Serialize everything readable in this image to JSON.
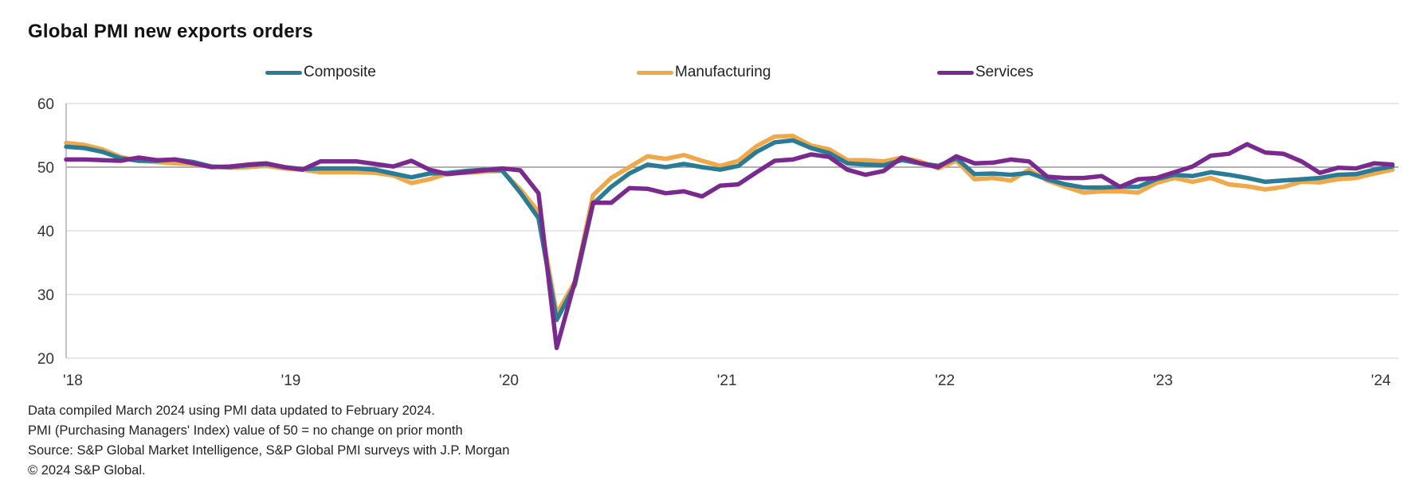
{
  "chart_data": {
    "type": "line",
    "title": "Global PMI new exports orders",
    "xlabel": "",
    "ylabel": "",
    "ylim": [
      20,
      60
    ],
    "yticks": [
      20,
      30,
      40,
      50,
      60
    ],
    "reference_line": 50,
    "grid": true,
    "legend_position": "top",
    "x_start": "2018-01",
    "x_end": "2024-02",
    "x_tick_labels": [
      "'18",
      "'19",
      "'20",
      "'21",
      "'22",
      "'23",
      "'24"
    ],
    "series": [
      {
        "name": "Composite",
        "color": "#2a7b96",
        "values": [
          53.2,
          53.0,
          52.4,
          51.4,
          51.0,
          51.0,
          51.2,
          50.8,
          50.1,
          50.0,
          50.3,
          50.5,
          50.0,
          49.7,
          49.8,
          49.8,
          49.8,
          49.6,
          49.0,
          48.4,
          49.0,
          49.1,
          49.4,
          49.6,
          49.5,
          46.0,
          42.0,
          26.0,
          31.5,
          44.2,
          46.9,
          49.0,
          50.4,
          50.0,
          50.5,
          50.0,
          49.6,
          50.2,
          52.4,
          53.9,
          54.2,
          53.0,
          52.2,
          50.6,
          50.4,
          50.3,
          51.1,
          50.6,
          50.2,
          51.4,
          48.9,
          49.0,
          48.8,
          49.1,
          48.1,
          47.3,
          46.8,
          46.8,
          46.9,
          46.9,
          48.1,
          48.8,
          48.6,
          49.2,
          48.8,
          48.3,
          47.7,
          47.9,
          48.1,
          48.3,
          48.8,
          48.9,
          49.6,
          50.1
        ]
      },
      {
        "name": "Manufacturing",
        "color": "#f0a848",
        "values": [
          53.8,
          53.5,
          52.8,
          51.6,
          51.0,
          50.8,
          50.6,
          50.5,
          50.1,
          49.9,
          50.0,
          50.2,
          49.8,
          49.6,
          49.2,
          49.2,
          49.2,
          49.1,
          48.7,
          47.5,
          48.1,
          49.0,
          49.1,
          49.3,
          49.4,
          46.5,
          43.0,
          27.0,
          32.0,
          45.6,
          48.3,
          50.0,
          51.7,
          51.3,
          51.9,
          51.0,
          50.2,
          51.0,
          53.3,
          54.8,
          54.9,
          53.4,
          52.8,
          51.1,
          51.1,
          50.9,
          51.5,
          50.9,
          49.8,
          51.0,
          48.1,
          48.3,
          47.9,
          49.6,
          47.9,
          46.9,
          46.0,
          46.2,
          46.2,
          46.0,
          47.5,
          48.3,
          47.7,
          48.3,
          47.3,
          47.0,
          46.5,
          46.9,
          47.7,
          47.6,
          48.1,
          48.3,
          49.0,
          49.6
        ]
      },
      {
        "name": "Services",
        "color": "#7a2a8e",
        "values": [
          51.2,
          51.2,
          51.1,
          51.0,
          51.5,
          51.1,
          51.2,
          50.6,
          50.0,
          50.1,
          50.4,
          50.6,
          50.0,
          49.6,
          50.9,
          50.9,
          50.9,
          50.5,
          50.1,
          51.0,
          49.6,
          48.9,
          49.2,
          49.5,
          49.8,
          49.5,
          45.9,
          21.6,
          32.0,
          44.4,
          44.4,
          46.7,
          46.6,
          45.9,
          46.2,
          45.4,
          47.1,
          47.3,
          49.2,
          51.0,
          51.2,
          52.0,
          51.6,
          49.6,
          48.8,
          49.4,
          51.5,
          50.6,
          50.0,
          51.7,
          50.6,
          50.7,
          51.2,
          50.9,
          48.5,
          48.3,
          48.3,
          48.6,
          46.9,
          48.1,
          48.3,
          49.2,
          50.1,
          51.8,
          52.1,
          53.6,
          52.3,
          52.1,
          50.9,
          49.1,
          49.9,
          49.8,
          50.6,
          50.4
        ]
      }
    ]
  },
  "footer": {
    "line1": "Data compiled March 2024 using PMI data updated to February 2024.",
    "line2": "PMI (Purchasing Managers' Index) value of 50 = no change on prior month",
    "line3": "Source: S&P Global Market Intelligence, S&P Global PMI surveys with J.P. Morgan",
    "line4": "© 2024 S&P Global."
  }
}
